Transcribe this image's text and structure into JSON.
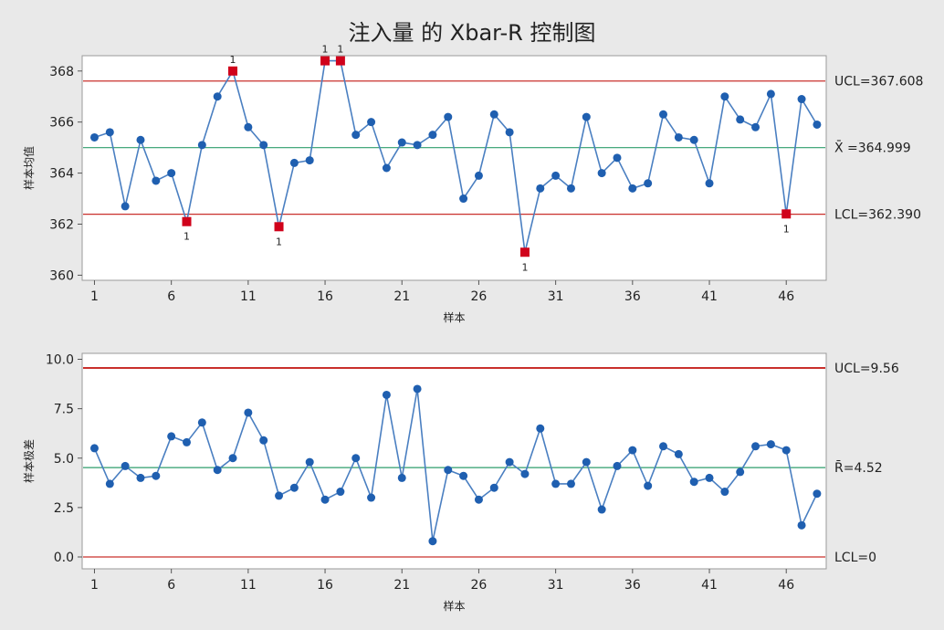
{
  "chart_data": [
    {
      "type": "line",
      "title": "注入量 的 Xbar-R 控制图",
      "xlabel": "样本",
      "ylabel": "样本均值",
      "xticks": [
        1,
        6,
        11,
        16,
        21,
        26,
        31,
        36,
        41,
        46
      ],
      "yticks": [
        "360",
        "362",
        "364",
        "366",
        "368"
      ],
      "ylim": [
        359.8,
        368.6
      ],
      "xlim": [
        0.2,
        48.6
      ],
      "grid": false,
      "colors": {
        "line": "#4a7fc1",
        "point": "#1f5fb0",
        "flag": "#d0021b",
        "center": "#2e9e6b",
        "limit": "#c9302c"
      },
      "series": [
        {
          "x": [
            1,
            2,
            3,
            4,
            5,
            6,
            7,
            8,
            9,
            10,
            11,
            12,
            13,
            14,
            15,
            16,
            17,
            18,
            19,
            20,
            21,
            22,
            23,
            24,
            25,
            26,
            27,
            28,
            29,
            30,
            31,
            32,
            33,
            34,
            35,
            36,
            37,
            38,
            39,
            40,
            41,
            42,
            43,
            44,
            45,
            46,
            47,
            48
          ],
          "values": [
            365.4,
            365.6,
            362.7,
            365.3,
            363.7,
            364.0,
            362.1,
            365.1,
            367.0,
            368.0,
            365.8,
            365.1,
            361.9,
            364.4,
            364.5,
            368.4,
            368.4,
            365.5,
            366.0,
            364.2,
            365.2,
            365.1,
            365.5,
            366.2,
            363.0,
            363.9,
            366.3,
            365.6,
            360.9,
            363.4,
            363.9,
            363.4,
            366.2,
            364.0,
            364.6,
            363.4,
            363.6,
            366.3,
            365.4,
            365.3,
            363.6,
            367.0,
            366.1,
            365.8,
            367.1,
            362.4,
            366.9,
            365.9
          ]
        }
      ],
      "flagged_points": [
        7,
        10,
        13,
        16,
        17,
        29,
        46
      ],
      "flag_text": "1",
      "control_lines": [
        {
          "name": "UCL",
          "value": 367.608,
          "label": "UCL=367.608"
        },
        {
          "name": "center",
          "value": 364.999,
          "label": "X̄ =364.999"
        },
        {
          "name": "LCL",
          "value": 362.39,
          "label": "LCL=362.390"
        }
      ]
    },
    {
      "type": "line",
      "xlabel": "样本",
      "ylabel": "样本极差",
      "xticks": [
        1,
        6,
        11,
        16,
        21,
        26,
        31,
        36,
        41,
        46
      ],
      "yticks": [
        "0.0",
        "2.5",
        "5.0",
        "7.5",
        "10.0"
      ],
      "ylim": [
        -0.6,
        10.3
      ],
      "xlim": [
        0.2,
        48.6
      ],
      "grid": false,
      "colors": {
        "line": "#4a7fc1",
        "point": "#1f5fb0",
        "center": "#2e9e6b",
        "limit": "#c9302c"
      },
      "series": [
        {
          "x": [
            1,
            2,
            3,
            4,
            5,
            6,
            7,
            8,
            9,
            10,
            11,
            12,
            13,
            14,
            15,
            16,
            17,
            18,
            19,
            20,
            21,
            22,
            23,
            24,
            25,
            26,
            27,
            28,
            29,
            30,
            31,
            32,
            33,
            34,
            35,
            36,
            37,
            38,
            39,
            40,
            41,
            42,
            43,
            44,
            45,
            46,
            47,
            48
          ],
          "values": [
            5.5,
            3.7,
            4.6,
            4.0,
            4.1,
            6.1,
            5.8,
            6.8,
            4.4,
            5.0,
            7.3,
            5.9,
            3.1,
            3.5,
            4.8,
            2.9,
            3.3,
            5.0,
            3.0,
            8.2,
            4.0,
            8.5,
            0.8,
            4.4,
            4.1,
            2.9,
            3.5,
            4.8,
            4.2,
            6.5,
            3.7,
            3.7,
            4.8,
            2.4,
            4.6,
            5.4,
            3.6,
            5.6,
            5.2,
            3.8,
            4.0,
            3.3,
            4.3,
            5.6,
            5.7,
            5.4,
            1.6,
            3.2
          ]
        }
      ],
      "flagged_points": [],
      "control_lines": [
        {
          "name": "UCL",
          "value": 9.56,
          "label": "UCL=9.56"
        },
        {
          "name": "center",
          "value": 4.52,
          "label": "R̄=4.52"
        },
        {
          "name": "LCL",
          "value": 0,
          "label": "LCL=0"
        }
      ]
    }
  ]
}
